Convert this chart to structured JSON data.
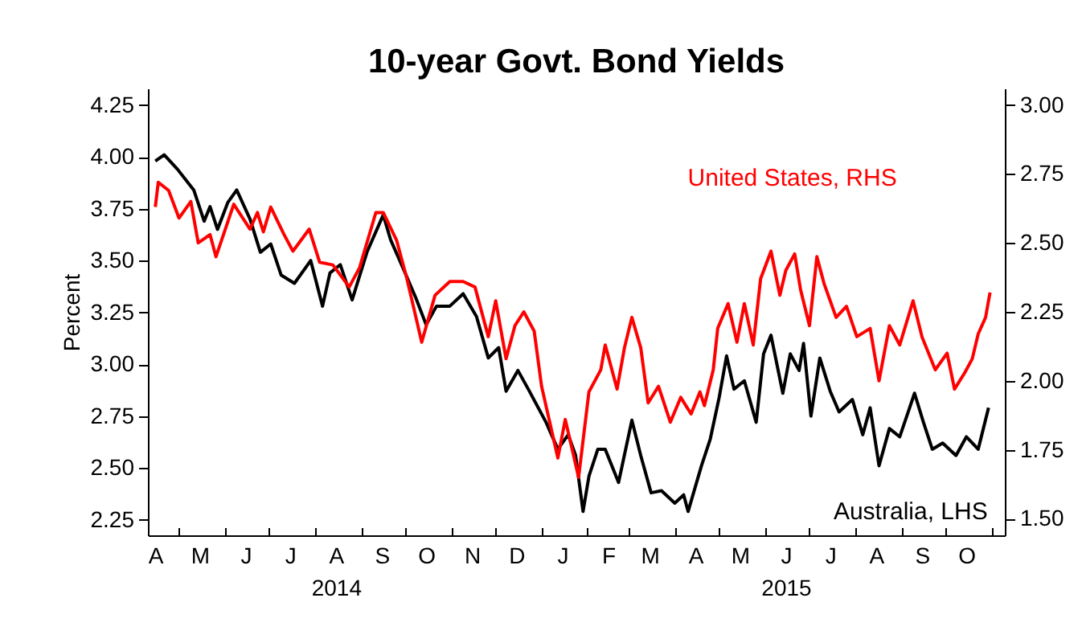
{
  "chart_data": {
    "type": "line",
    "title": "10-year Govt. Bond Yields",
    "ylabel": "Percent",
    "xlim": [
      "2014-04-10",
      "2015-11-10"
    ],
    "xticks": [
      {
        "value": "2014-05-01",
        "label": null
      },
      {
        "value": "2014-06-01",
        "label": null
      },
      {
        "value": "2014-07-01",
        "label": null
      },
      {
        "value": "2014-08-01",
        "label": null
      },
      {
        "value": "2014-09-01",
        "label": null
      },
      {
        "value": "2014-10-01",
        "label": null
      },
      {
        "value": "2014-11-01",
        "label": null
      },
      {
        "value": "2014-12-01",
        "label": null
      },
      {
        "value": "2015-01-01",
        "label": null
      },
      {
        "value": "2015-02-01",
        "label": null
      },
      {
        "value": "2015-03-01",
        "label": null
      },
      {
        "value": "2015-04-01",
        "label": null
      },
      {
        "value": "2015-05-01",
        "label": null
      },
      {
        "value": "2015-06-01",
        "label": null
      },
      {
        "value": "2015-07-01",
        "label": null
      },
      {
        "value": "2015-08-01",
        "label": null
      },
      {
        "value": "2015-09-01",
        "label": null
      },
      {
        "value": "2015-10-01",
        "label": null
      },
      {
        "value": "2015-11-01",
        "label": null
      },
      {
        "value": "2014-04-15",
        "label": "A"
      },
      {
        "value": "2014-05-15",
        "label": "M"
      },
      {
        "value": "2014-06-15",
        "label": "J"
      },
      {
        "value": "2014-07-15",
        "label": "J"
      },
      {
        "value": "2014-08-15",
        "label": "A\n2014"
      },
      {
        "value": "2014-09-15",
        "label": "S"
      },
      {
        "value": "2014-10-15",
        "label": "O"
      },
      {
        "value": "2014-11-15",
        "label": "N"
      },
      {
        "value": "2014-12-15",
        "label": "D"
      },
      {
        "value": "2015-01-15",
        "label": "J"
      },
      {
        "value": "2015-02-15",
        "label": "F"
      },
      {
        "value": "2015-03-15",
        "label": "M"
      },
      {
        "value": "2015-04-15",
        "label": "A"
      },
      {
        "value": "2015-05-15",
        "label": "M"
      },
      {
        "value": "2015-06-15",
        "label": "J\n2015"
      },
      {
        "value": "2015-07-15",
        "label": "J"
      },
      {
        "value": "2015-08-15",
        "label": "A"
      },
      {
        "value": "2015-09-15",
        "label": "S"
      },
      {
        "value": "2015-10-15",
        "label": "O"
      }
    ],
    "ylim": [
      2.175,
      4.33
    ],
    "yticks": [
      {
        "value": 2.25,
        "label": "2.25"
      },
      {
        "value": 2.5,
        "label": "2.50"
      },
      {
        "value": 2.75,
        "label": "2.75"
      },
      {
        "value": 3,
        "label": "3.00"
      },
      {
        "value": 3.25,
        "label": "3.25"
      },
      {
        "value": 3.5,
        "label": "3.50"
      },
      {
        "value": 3.75,
        "label": "3.75"
      },
      {
        "value": 4,
        "label": "4.00"
      },
      {
        "value": 4.25,
        "label": "4.25"
      }
    ],
    "y2lim": [
      1.44,
      3.06
    ],
    "y2ticks": [
      {
        "value": 1.5,
        "label": "1.50"
      },
      {
        "value": 1.75,
        "label": "1.75"
      },
      {
        "value": 2,
        "label": "2.00"
      },
      {
        "value": 2.25,
        "label": "2.25"
      },
      {
        "value": 2.5,
        "label": "2.50"
      },
      {
        "value": 2.75,
        "label": "2.75"
      },
      {
        "value": 3,
        "label": "3.00"
      }
    ],
    "series": [
      {
        "name": "Australia, LHS",
        "color": "#000000",
        "x": [
          "2014-04-15",
          "2014-04-21",
          "2014-04-30",
          "2014-05-11",
          "2014-05-18",
          "2014-05-22",
          "2014-05-27",
          "2014-06-03",
          "2014-06-09",
          "2014-06-18",
          "2014-06-25",
          "2014-07-02",
          "2014-07-09",
          "2014-07-18",
          "2014-07-29",
          "2014-08-06",
          "2014-08-11",
          "2014-08-18",
          "2014-08-26",
          "2014-09-05",
          "2014-09-16",
          "2014-09-21",
          "2014-09-29",
          "2014-10-08",
          "2014-10-15",
          "2014-10-22",
          "2014-10-31",
          "2014-11-09",
          "2014-11-18",
          "2014-11-26",
          "2014-12-03",
          "2014-12-08",
          "2014-12-16",
          "2014-12-23",
          "2015-01-04",
          "2015-01-12",
          "2015-01-19",
          "2015-01-24",
          "2015-01-29",
          "2015-02-02",
          "2015-02-08",
          "2015-02-13",
          "2015-02-22",
          "2015-03-03",
          "2015-03-09",
          "2015-03-16",
          "2015-03-23",
          "2015-04-01",
          "2015-04-07",
          "2015-04-10",
          "2015-04-19",
          "2015-04-25",
          "2015-05-01",
          "2015-05-06",
          "2015-05-11",
          "2015-05-18",
          "2015-05-26",
          "2015-05-31",
          "2015-06-05",
          "2015-06-13",
          "2015-06-18",
          "2015-06-24",
          "2015-06-27",
          "2015-07-02",
          "2015-07-08",
          "2015-07-15",
          "2015-07-21",
          "2015-07-30",
          "2015-08-06",
          "2015-08-11",
          "2015-08-17",
          "2015-08-24",
          "2015-08-31",
          "2015-09-10",
          "2015-09-16",
          "2015-09-22",
          "2015-09-29",
          "2015-10-08",
          "2015-10-15",
          "2015-10-23",
          "2015-10-30"
        ],
        "values": [
          3.98,
          4.01,
          3.94,
          3.84,
          3.69,
          3.76,
          3.65,
          3.78,
          3.84,
          3.7,
          3.54,
          3.58,
          3.43,
          3.39,
          3.5,
          3.28,
          3.44,
          3.48,
          3.31,
          3.54,
          3.72,
          3.6,
          3.47,
          3.32,
          3.19,
          3.28,
          3.28,
          3.34,
          3.23,
          3.03,
          3.08,
          2.87,
          2.97,
          2.88,
          2.72,
          2.59,
          2.66,
          2.56,
          2.29,
          2.46,
          2.59,
          2.59,
          2.43,
          2.73,
          2.56,
          2.38,
          2.39,
          2.33,
          2.37,
          2.29,
          2.51,
          2.64,
          2.84,
          3.04,
          2.88,
          2.92,
          2.72,
          3.05,
          3.14,
          2.86,
          3.05,
          2.97,
          3.1,
          2.75,
          3.03,
          2.87,
          2.77,
          2.83,
          2.66,
          2.79,
          2.51,
          2.69,
          2.65,
          2.86,
          2.72,
          2.59,
          2.62,
          2.56,
          2.65,
          2.59,
          2.79
        ]
      },
      {
        "name": "United States, RHS",
        "color": "#ff0000",
        "axis": "y2",
        "x": [
          "2014-04-15",
          "2014-04-17",
          "2014-04-24",
          "2014-05-01",
          "2014-05-09",
          "2014-05-14",
          "2014-05-22",
          "2014-05-26",
          "2014-06-07",
          "2014-06-18",
          "2014-06-23",
          "2014-06-27",
          "2014-07-02",
          "2014-07-11",
          "2014-07-17",
          "2014-07-28",
          "2014-08-04",
          "2014-08-13",
          "2014-08-24",
          "2014-08-31",
          "2014-09-11",
          "2014-09-16",
          "2014-09-25",
          "2014-10-02",
          "2014-10-12",
          "2014-10-21",
          "2014-10-31",
          "2014-11-09",
          "2014-11-17",
          "2014-11-26",
          "2014-12-01",
          "2014-12-08",
          "2014-12-14",
          "2014-12-20",
          "2014-12-27",
          "2015-01-01",
          "2015-01-12",
          "2015-01-17",
          "2015-01-26",
          "2015-02-02",
          "2015-02-10",
          "2015-02-13",
          "2015-02-21",
          "2015-02-26",
          "2015-03-03",
          "2015-03-09",
          "2015-03-14",
          "2015-03-21",
          "2015-03-29",
          "2015-04-05",
          "2015-04-12",
          "2015-04-18",
          "2015-04-21",
          "2015-04-27",
          "2015-04-30",
          "2015-05-07",
          "2015-05-13",
          "2015-05-18",
          "2015-05-24",
          "2015-05-29",
          "2015-06-05",
          "2015-06-11",
          "2015-06-15",
          "2015-06-21",
          "2015-06-25",
          "2015-07-01",
          "2015-07-06",
          "2015-07-11",
          "2015-07-19",
          "2015-07-26",
          "2015-08-02",
          "2015-08-11",
          "2015-08-17",
          "2015-08-24",
          "2015-08-31",
          "2015-09-09",
          "2015-09-15",
          "2015-09-24",
          "2015-10-02",
          "2015-10-07",
          "2015-10-14",
          "2015-10-19",
          "2015-10-23",
          "2015-10-28",
          "2015-10-31"
        ],
        "values": [
          2.63,
          2.72,
          2.69,
          2.59,
          2.65,
          2.5,
          2.53,
          2.45,
          2.64,
          2.55,
          2.61,
          2.54,
          2.63,
          2.53,
          2.47,
          2.55,
          2.43,
          2.42,
          2.34,
          2.41,
          2.61,
          2.61,
          2.51,
          2.37,
          2.14,
          2.31,
          2.36,
          2.36,
          2.34,
          2.16,
          2.29,
          2.08,
          2.2,
          2.25,
          2.18,
          1.98,
          1.72,
          1.86,
          1.65,
          1.96,
          2.04,
          2.13,
          1.97,
          2.12,
          2.23,
          2.12,
          1.92,
          1.98,
          1.85,
          1.94,
          1.88,
          1.96,
          1.91,
          2.04,
          2.19,
          2.28,
          2.14,
          2.28,
          2.13,
          2.37,
          2.47,
          2.31,
          2.4,
          2.46,
          2.33,
          2.2,
          2.45,
          2.35,
          2.23,
          2.27,
          2.16,
          2.19,
          2.0,
          2.2,
          2.13,
          2.29,
          2.16,
          2.04,
          2.1,
          1.97,
          2.03,
          2.08,
          2.17,
          2.23,
          2.32
        ]
      }
    ]
  }
}
